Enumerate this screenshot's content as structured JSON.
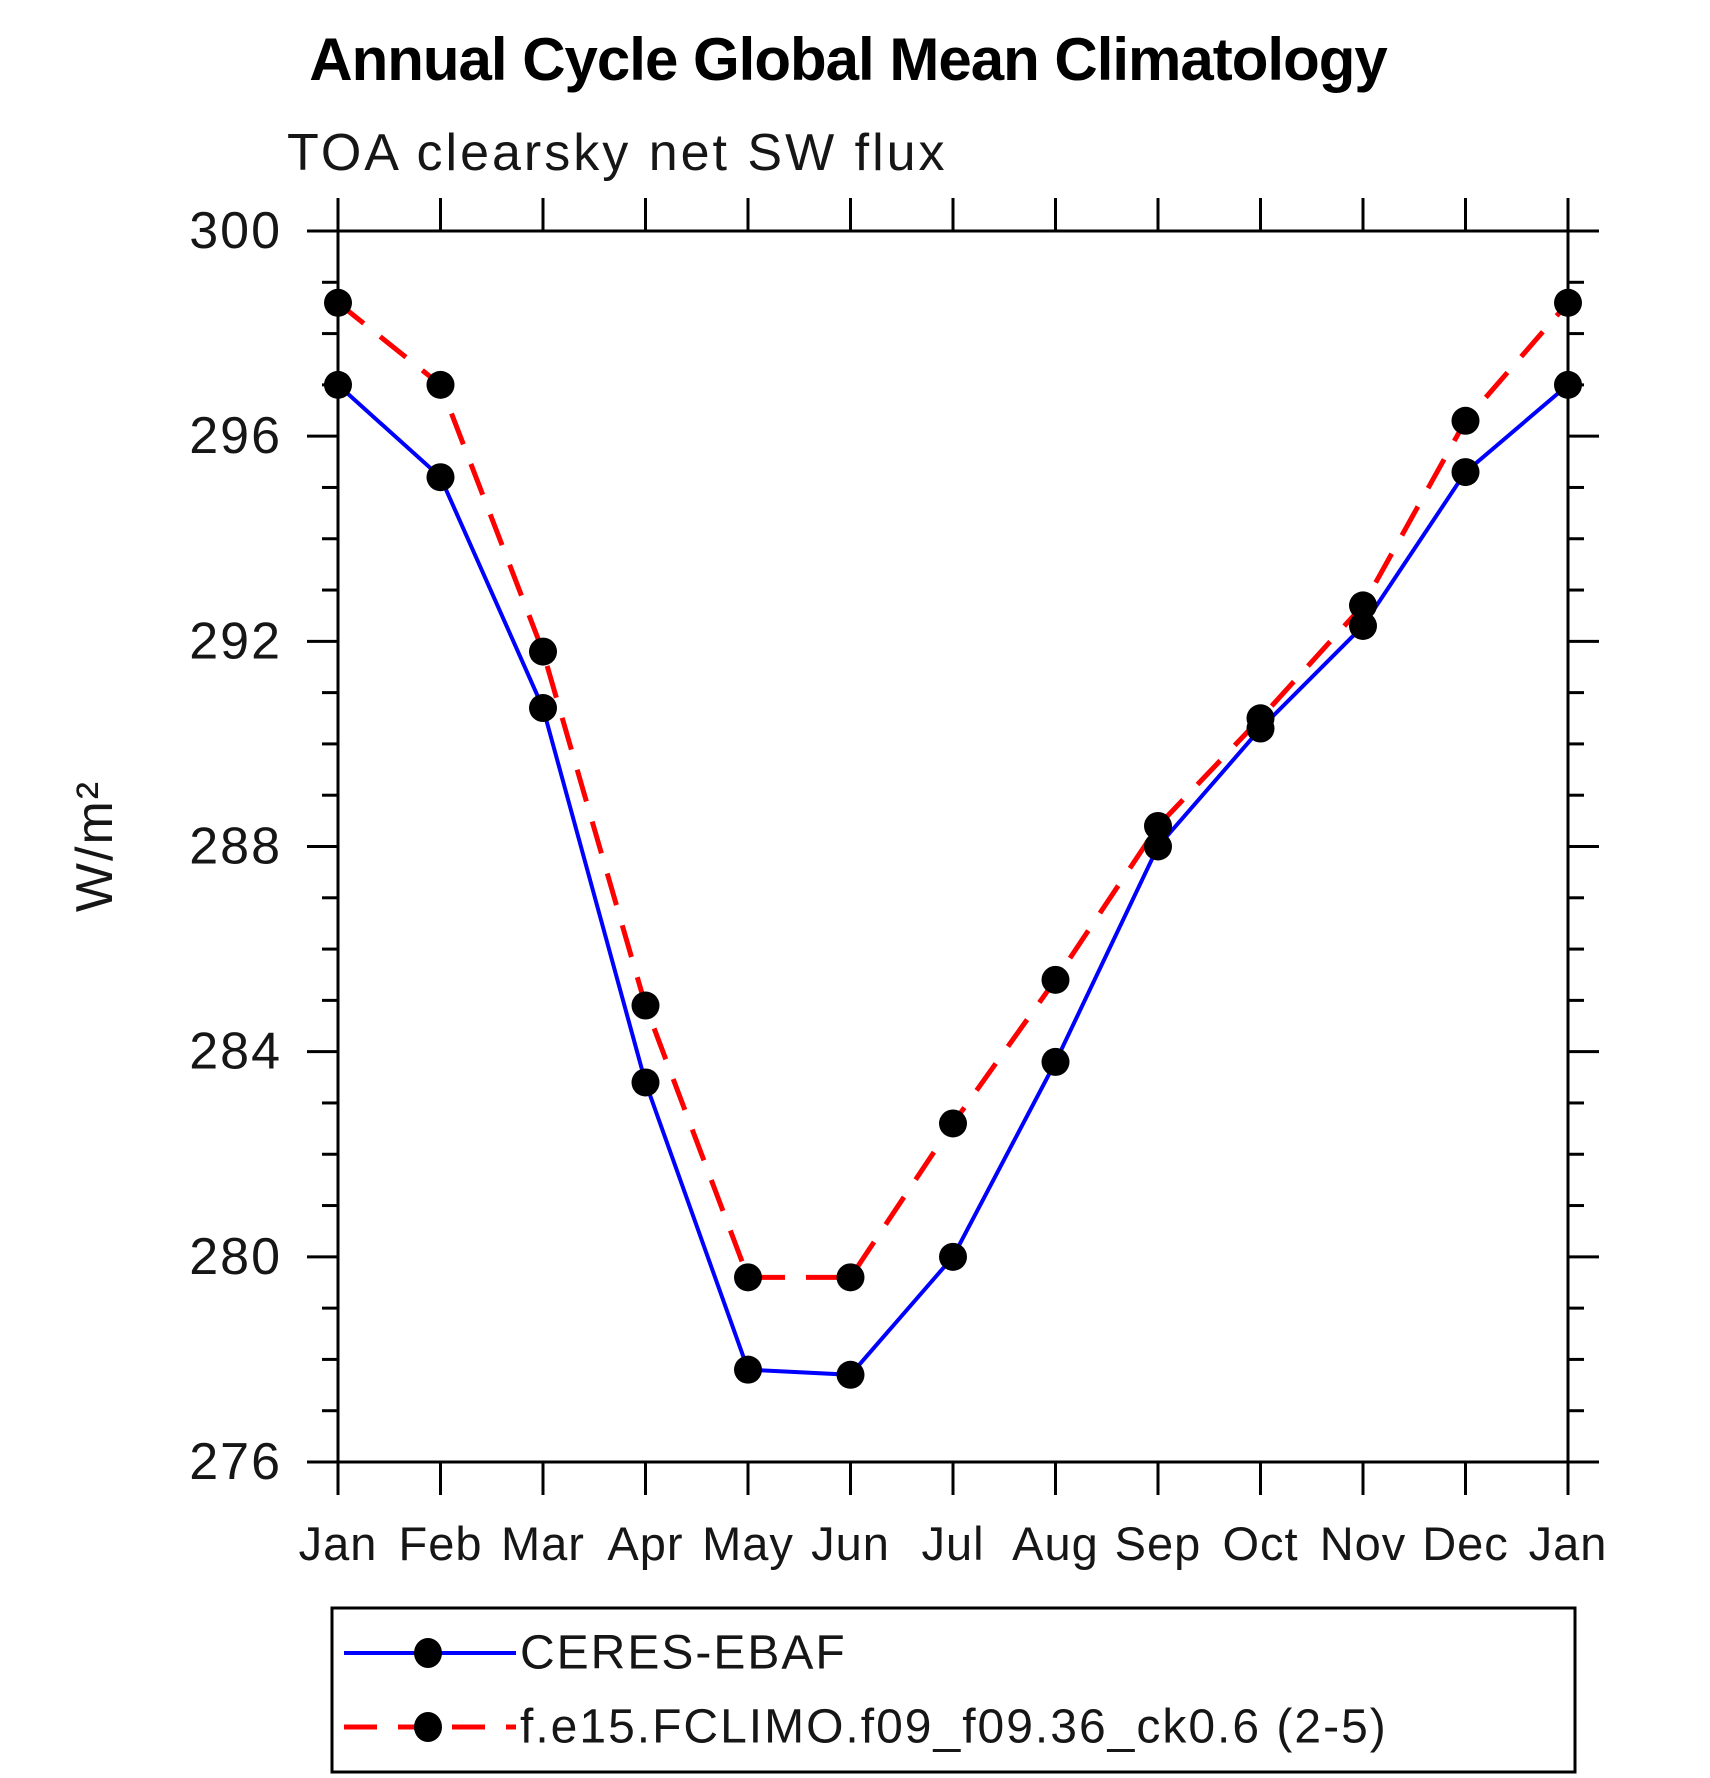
{
  "chart_data": {
    "type": "line",
    "title": "Annual Cycle Global Mean Climatology",
    "subtitle": "TOA clearsky net SW flux",
    "ylabel": "W/m²",
    "xlabel": "",
    "categories": [
      "Jan",
      "Feb",
      "Mar",
      "Apr",
      "May",
      "Jun",
      "Jul",
      "Aug",
      "Sep",
      "Oct",
      "Nov",
      "Dec",
      "Jan"
    ],
    "series": [
      {
        "name": "CERES-EBAF",
        "color": "#0000ff",
        "line_style": "solid",
        "marker": "filled-circle",
        "values": [
          297.0,
          295.2,
          290.7,
          283.4,
          277.8,
          277.7,
          280.0,
          283.8,
          288.0,
          290.3,
          292.3,
          295.3,
          297.0
        ]
      },
      {
        "name": "f.e15.FCLIMO.f09_f09.36_ck0.6 (2-5)",
        "color": "#ff0000",
        "line_style": "dashed",
        "marker": "filled-circle",
        "values": [
          298.6,
          297.0,
          291.8,
          284.9,
          279.6,
          279.6,
          282.6,
          285.4,
          288.4,
          290.5,
          292.7,
          296.3,
          298.6
        ]
      }
    ],
    "marker_color": "#000000",
    "axis_color": "#000000",
    "ylim": [
      276,
      300
    ],
    "y_major_ticks": [
      276,
      280,
      284,
      288,
      292,
      296,
      300
    ],
    "y_minor_step": 1,
    "grid": false,
    "legend_position": "bottom-left"
  }
}
